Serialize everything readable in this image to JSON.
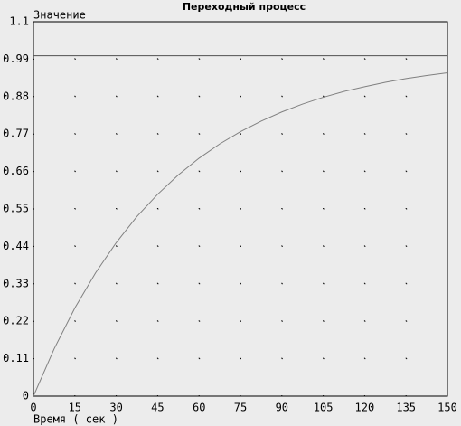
{
  "chart_data": {
    "type": "line",
    "title": "Переходный процесс",
    "y_label": "Значение",
    "x_label": "Время ( сек )",
    "x": [
      0,
      7.5,
      15,
      22.5,
      30,
      37.5,
      45,
      52.5,
      60,
      67.5,
      75,
      82.5,
      90,
      97.5,
      105,
      112.5,
      120,
      127.5,
      135,
      142.5,
      150
    ],
    "series": [
      {
        "color": "#808080",
        "values": [
          0,
          0.139,
          0.259,
          0.362,
          0.451,
          0.528,
          0.593,
          0.65,
          0.699,
          0.741,
          0.777,
          0.808,
          0.835,
          0.858,
          0.878,
          0.895,
          0.909,
          0.922,
          0.933,
          0.942,
          0.95
        ]
      }
    ],
    "hline": 1,
    "hline_color": "#505050",
    "xlim": [
      0,
      150
    ],
    "xticks": [
      0,
      15,
      30,
      45,
      60,
      75,
      90,
      105,
      120,
      135,
      150
    ],
    "ylim": [
      0,
      1.1
    ],
    "yticks": [
      0,
      0.11,
      0.22,
      0.33,
      0.44,
      0.55,
      0.66,
      0.77,
      0.88,
      0.99,
      1.1
    ],
    "grid": true
  }
}
